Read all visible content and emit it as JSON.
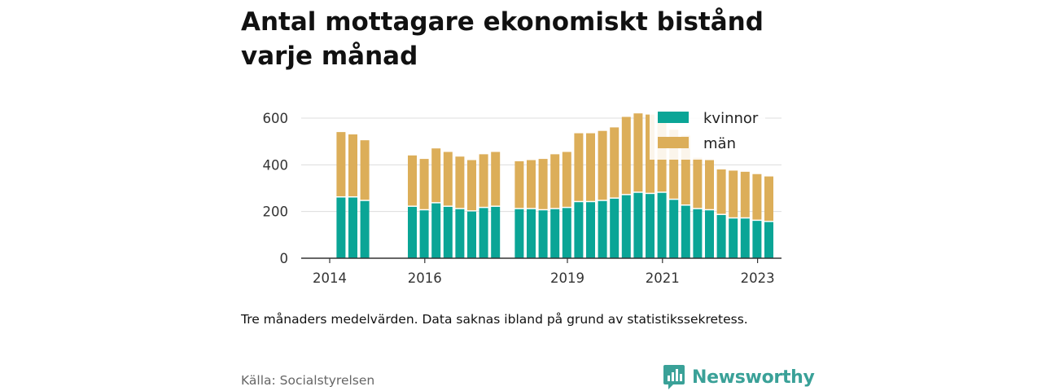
{
  "title": "Antal mottagare ekonomiskt bistånd varje månad",
  "note": "Tre månaders medelvärden. Data saknas ibland på grund av statistikssekretess.",
  "source": "Källa: Socialstyrelsen",
  "brand": {
    "name": "Newsworthy",
    "icon": "newsworthy-logo-icon",
    "color": "#3aa198"
  },
  "chart_data": {
    "type": "bar",
    "stacked": true,
    "x_ticks": [
      "2014",
      "2016",
      "2019",
      "2021",
      "2023"
    ],
    "y_ticks": [
      "0",
      "200",
      "400",
      "600"
    ],
    "ylim": [
      0,
      650
    ],
    "grid": true,
    "legend_position": "top-right",
    "categories": [
      "2014-Q2",
      "2014-Q3",
      "2014-Q4",
      "2015-Q4",
      "2016-Q1",
      "2016-Q2",
      "2016-Q3",
      "2016-Q4",
      "2017-Q1",
      "2017-Q2",
      "2017-Q3",
      "2018-Q1",
      "2018-Q2",
      "2018-Q3",
      "2018-Q4",
      "2019-Q1",
      "2019-Q2",
      "2019-Q3",
      "2019-Q4",
      "2020-Q1",
      "2020-Q2",
      "2020-Q3",
      "2020-Q4",
      "2021-Q1",
      "2021-Q2",
      "2021-Q3",
      "2021-Q4",
      "2022-Q1",
      "2022-Q2",
      "2022-Q3",
      "2022-Q4",
      "2023-Q1",
      "2023-Q2"
    ],
    "series": [
      {
        "name": "kvinnor",
        "color": "#0aa596",
        "values": [
          260,
          260,
          245,
          220,
          205,
          235,
          220,
          210,
          200,
          215,
          220,
          210,
          210,
          205,
          210,
          215,
          240,
          240,
          245,
          255,
          270,
          280,
          275,
          280,
          250,
          225,
          210,
          205,
          185,
          170,
          170,
          160,
          155
        ]
      },
      {
        "name": "män",
        "color": "#dcae59",
        "values": [
          275,
          265,
          255,
          215,
          215,
          230,
          230,
          220,
          215,
          225,
          230,
          200,
          205,
          215,
          230,
          235,
          290,
          290,
          295,
          300,
          330,
          335,
          335,
          330,
          295,
          295,
          215,
          210,
          190,
          200,
          195,
          195,
          190
        ]
      }
    ]
  }
}
